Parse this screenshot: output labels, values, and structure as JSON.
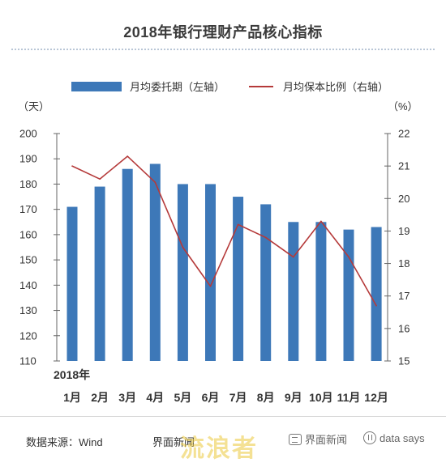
{
  "chart_data": {
    "type": "bar+line",
    "title": "2018年银行理财产品核心指标",
    "legend": {
      "placement": "top",
      "bar_label": "月均委托期（左轴）",
      "line_label": "月均保本比例（右轴）"
    },
    "y_left": {
      "unit_label": "（天）",
      "ticks": [
        110,
        120,
        130,
        140,
        150,
        160,
        170,
        180,
        190,
        200
      ],
      "range": [
        110,
        200
      ]
    },
    "y_right": {
      "unit_label": "（%）",
      "ticks": [
        15,
        16,
        17,
        18,
        19,
        20,
        21,
        22
      ],
      "range": [
        15,
        22
      ]
    },
    "year_label": "2018年",
    "categories": [
      "1月",
      "2月",
      "3月",
      "4月",
      "5月",
      "6月",
      "7月",
      "8月",
      "9月",
      "10月",
      "11月",
      "12月"
    ],
    "series": [
      {
        "name": "月均委托期（左轴）",
        "type": "bar",
        "axis": "left",
        "color": "#3d78b8",
        "values": [
          171,
          179,
          186,
          188,
          180,
          180,
          175,
          172,
          165,
          165,
          162,
          163
        ]
      },
      {
        "name": "月均保本比例（右轴）",
        "type": "line",
        "axis": "right",
        "color": "#b53a3a",
        "values": [
          21.0,
          20.6,
          21.3,
          20.5,
          18.5,
          17.3,
          19.2,
          18.8,
          18.2,
          19.3,
          18.2,
          16.7
        ]
      }
    ],
    "grid": false
  },
  "footer": {
    "source": "数据来源：Wind",
    "outlet": "界面新闻",
    "brand_left": "界面新闻",
    "brand_right": "data says"
  },
  "watermark": "流浪者",
  "icons": {
    "brand_left": "newspaper-icon",
    "brand_right": "data-says-logo-icon"
  }
}
